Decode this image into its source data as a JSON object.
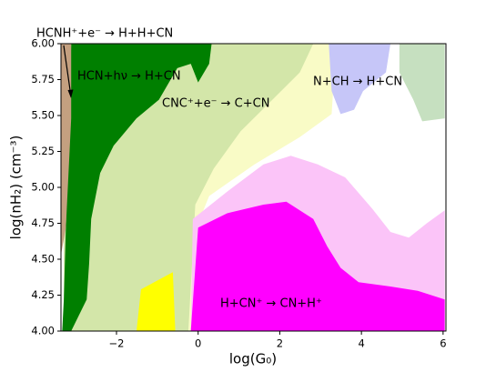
{
  "chart_data": {
    "type": "region",
    "xlabel": "log(G₀)",
    "ylabel": "log(nH₂) (cm⁻³)",
    "xlim": [
      -3.36,
      6.07
    ],
    "ylim": [
      4,
      6
    ],
    "xticks": [
      {
        "value": -2,
        "label": "−2"
      },
      0,
      2,
      4,
      6
    ],
    "yticks": [
      {
        "value": 4,
        "label": "4.00"
      },
      {
        "value": 4.25,
        "label": "4.25"
      },
      {
        "value": 4.5,
        "label": "4.50"
      },
      {
        "value": 4.75,
        "label": "4.75"
      },
      {
        "value": 5,
        "label": "5.00"
      },
      {
        "value": 5.25,
        "label": "5.25"
      },
      {
        "value": 5.5,
        "label": "5.50"
      },
      {
        "value": 5.75,
        "label": "5.75"
      },
      {
        "value": 6,
        "label": "6.00"
      }
    ],
    "annotations": [
      "HCNH⁺+e⁻ → H+H+CN",
      "HCN+hν → H+CN",
      "CNC⁺+e⁻ → C+CN",
      "N+CH → H+CN",
      "H+CN⁺ → CN+H⁺"
    ],
    "series": [
      {
        "color": "#f9fbc6",
        "x": [
          -0.4,
          3.38,
          3.27,
          2.49,
          1.38,
          0.27,
          -0.13,
          -0.18,
          -0.62,
          -0.62
        ],
        "y": [
          6,
          6,
          5.51,
          5.35,
          5.16,
          4.94,
          4.66,
          4,
          4,
          6
        ]
      },
      {
        "color": "#d3e6a9",
        "x": [
          -3.29,
          2.82,
          2.49,
          1.82,
          1.04,
          0.38,
          -0.07,
          -0.24,
          -3.29
        ],
        "y": [
          6,
          6,
          5.8,
          5.61,
          5.39,
          5.13,
          4.88,
          4,
          4
        ]
      },
      {
        "color": "#fbc4f8",
        "x": [
          -0.13,
          0.71,
          1.6,
          2.27,
          2.93,
          3.6,
          4.27,
          4.71,
          5.16,
          5.6,
          6.04,
          6.04,
          -0.18
        ],
        "y": [
          4.78,
          4.97,
          5.16,
          5.22,
          5.16,
          5.07,
          4.85,
          4.69,
          4.65,
          4.75,
          4.84,
          4,
          4
        ]
      },
      {
        "color": "#ff00ff",
        "x": [
          0,
          0.71,
          1.6,
          2.16,
          2.82,
          3.16,
          3.49,
          3.93,
          4.71,
          5.38,
          6.04,
          6.04,
          -0.18
        ],
        "y": [
          4.72,
          4.82,
          4.88,
          4.9,
          4.78,
          4.59,
          4.44,
          4.34,
          4.31,
          4.28,
          4.22,
          4,
          4
        ]
      },
      {
        "color": "#ffff00",
        "x": [
          -1.4,
          -0.62,
          -0.56,
          -1.51
        ],
        "y": [
          4.29,
          4.41,
          4,
          4
        ]
      },
      {
        "color": "#007f00",
        "x": [
          -3.07,
          0.33,
          0.27,
          0,
          -0.18,
          -0.51,
          -0.96,
          -1.51,
          -2.07,
          -2.4,
          -2.62,
          -2.67,
          -2.73,
          -3.11,
          -3.33,
          -3.29,
          -3.24,
          -3.11
        ],
        "y": [
          6,
          6,
          5.86,
          5.73,
          5.86,
          5.83,
          5.61,
          5.48,
          5.29,
          5.1,
          4.78,
          4.47,
          4.22,
          4,
          4,
          4.22,
          4.72,
          6
        ]
      },
      {
        "color": "#c4a080",
        "x": [
          -3.36,
          -3.11,
          -3.11,
          -3.24,
          -3.36
        ],
        "y": [
          6,
          6,
          5.48,
          4.72,
          4.53
        ]
      },
      {
        "color": "#c6c6f8",
        "x": [
          3.2,
          4.71,
          4.6,
          4.04,
          3.82,
          3.49,
          3.27
        ],
        "y": [
          6,
          6,
          5.8,
          5.67,
          5.54,
          5.51,
          5.67
        ]
      },
      {
        "color": "#c6e0c0",
        "x": [
          4.93,
          6.04,
          6.04,
          5.49,
          5.27,
          4.93
        ],
        "y": [
          6,
          6,
          5.48,
          5.46,
          5.61,
          5.8
        ]
      }
    ]
  }
}
